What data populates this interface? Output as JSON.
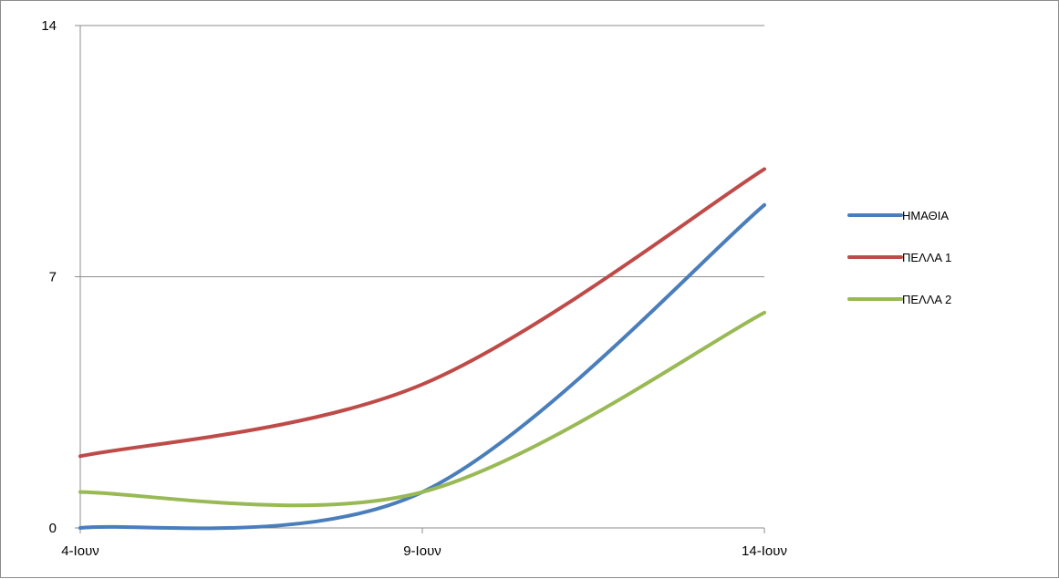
{
  "chart_data": {
    "type": "line",
    "title": "",
    "xlabel": "",
    "ylabel": "",
    "categories": [
      "4-Ιουν",
      "9-Ιουν",
      "14-Ιουν"
    ],
    "ylim": [
      0,
      14
    ],
    "yticks": [
      "0",
      "7",
      "14"
    ],
    "grid": true,
    "smooth": true,
    "legend_position": "right",
    "series": [
      {
        "name": "ΗΜΑΘΙΑ",
        "values": [
          0,
          1,
          9
        ],
        "color": "#4a7ebb"
      },
      {
        "name": "ΠΕΛΛΑ 1",
        "values": [
          2,
          4,
          10
        ],
        "color": "#be4b48"
      },
      {
        "name": "ΠΕΛΛΑ 2",
        "values": [
          1,
          1,
          6
        ],
        "color": "#98b954"
      }
    ]
  }
}
